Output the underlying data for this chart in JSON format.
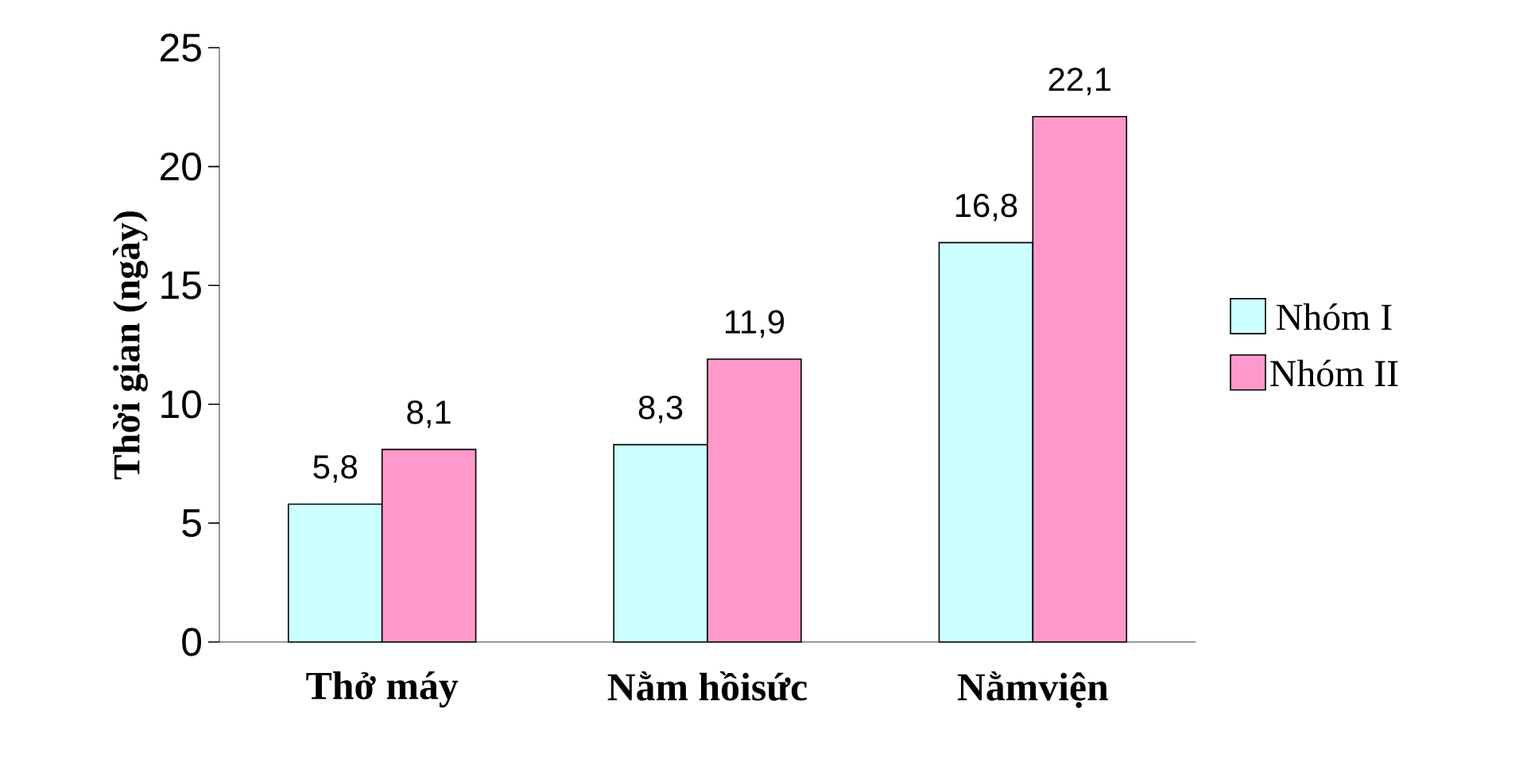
{
  "chart_data": {
    "type": "bar",
    "ylabel": "Thời gian (ngày)",
    "categories": [
      "Thở máy",
      "Nằm hồisức",
      "Nằmviện"
    ],
    "series": [
      {
        "name": "Nhóm I",
        "color": "#ccffff",
        "values": [
          5.8,
          8.3,
          16.8
        ],
        "value_labels": [
          "5,8",
          "8,3",
          "16,8"
        ]
      },
      {
        "name": "Nhóm II",
        "color": "#ff99cc",
        "values": [
          8.1,
          11.9,
          22.1
        ],
        "value_labels": [
          "8,1",
          "11,9",
          "22,1"
        ]
      }
    ],
    "ylim": [
      0,
      25
    ],
    "yticks": [
      0,
      5,
      10,
      15,
      20,
      25
    ],
    "legend": "right"
  }
}
